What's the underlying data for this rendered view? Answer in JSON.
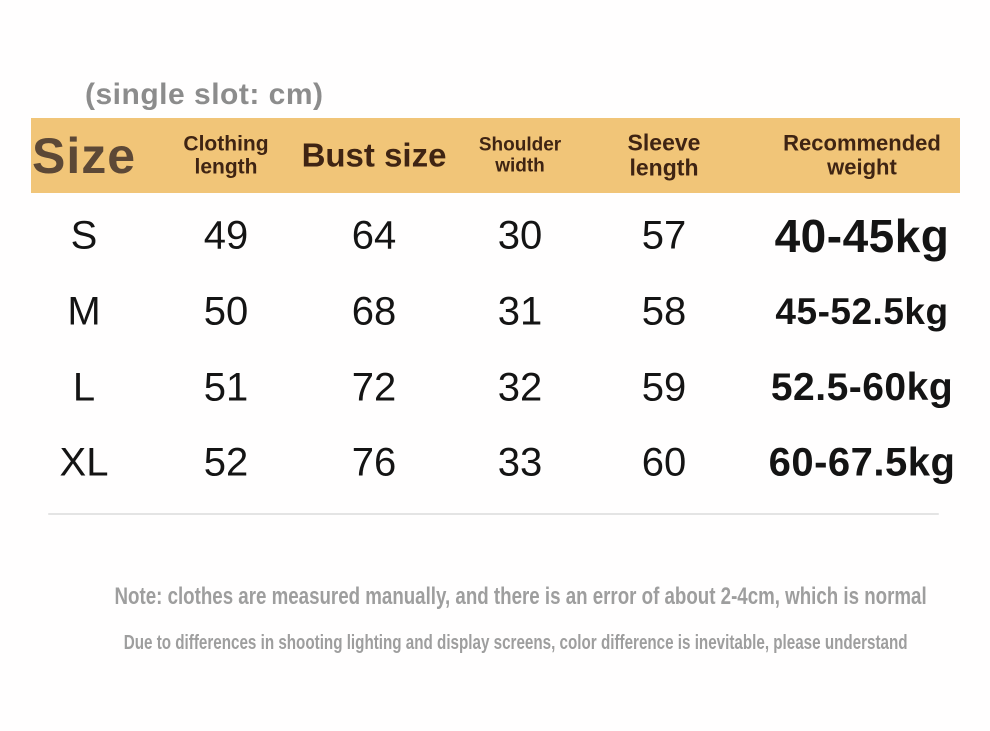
{
  "title": "(single slot: cm)",
  "header": {
    "size": "Size",
    "clothing_length": [
      "Clothing",
      "length"
    ],
    "bust_size": "Bust size",
    "shoulder_width": [
      "Shoulder",
      "width"
    ],
    "sleeve_length": [
      "Sleeve",
      "length"
    ],
    "recommended_weight": [
      "Recommended",
      "weight"
    ]
  },
  "rows": [
    {
      "size": "S",
      "clothing_length": "49",
      "bust_size": "64",
      "shoulder_width": "30",
      "sleeve_length": "57",
      "weight": "40-45kg"
    },
    {
      "size": "M",
      "clothing_length": "50",
      "bust_size": "68",
      "shoulder_width": "31",
      "sleeve_length": "58",
      "weight": "45-52.5kg"
    },
    {
      "size": "L",
      "clothing_length": "51",
      "bust_size": "72",
      "shoulder_width": "32",
      "sleeve_length": "59",
      "weight": "52.5-60kg"
    },
    {
      "size": "XL",
      "clothing_length": "52",
      "bust_size": "76",
      "shoulder_width": "33",
      "sleeve_length": "60",
      "weight": "60-67.5kg"
    }
  ],
  "notes": [
    "Note: clothes are measured manually, and there is an error of about 2-4cm, which is normal",
    "Due to differences in shooting lighting and display screens, color difference is inevitable, please understand"
  ],
  "colors": {
    "header_bg": "#f1c578",
    "header_text": "#3f2413",
    "size_label": "#5c4836",
    "title_text": "#8c8c8c",
    "data_text": "#141414",
    "note_text": "#9e9e9e",
    "divider": "#e4e4e4"
  },
  "chart_data": {
    "type": "table",
    "title": "(single slot: cm)",
    "columns": [
      "Size",
      "Clothing length",
      "Bust size",
      "Shoulder width",
      "Sleeve length",
      "Recommended weight"
    ],
    "rows": [
      [
        "S",
        49,
        64,
        30,
        57,
        "40-45kg"
      ],
      [
        "M",
        50,
        68,
        31,
        58,
        "45-52.5kg"
      ],
      [
        "L",
        51,
        72,
        32,
        59,
        "52.5-60kg"
      ],
      [
        "XL",
        52,
        76,
        33,
        60,
        "60-67.5kg"
      ]
    ],
    "unit": "cm",
    "notes": [
      "Note: clothes are measured manually, and there is an error of about 2-4cm, which is normal",
      "Due to differences in shooting lighting and display screens, color difference is inevitable, please understand"
    ]
  }
}
